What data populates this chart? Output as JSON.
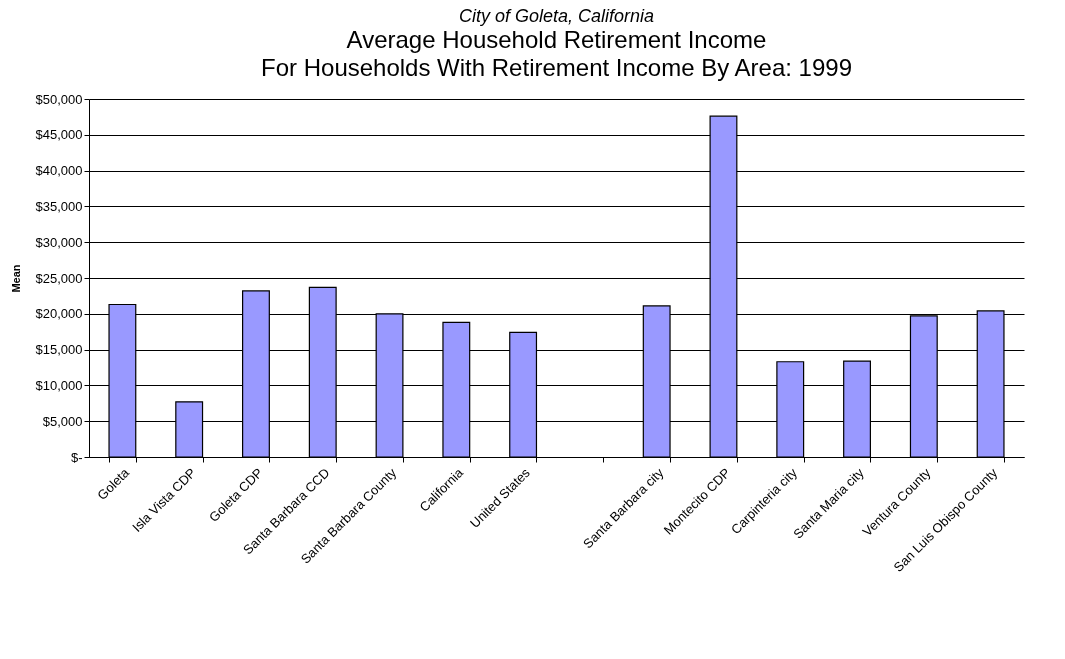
{
  "chart_data": {
    "type": "bar",
    "title": "City of Goleta, California",
    "subtitle": "Average Household Retirement Income\nFor Households With Retirement Income By Area: 1999",
    "ylabel": "Mean",
    "categories": [
      "Goleta",
      "Isla Vista CDP",
      "Goleta CDP",
      "Santa Barbara CCD",
      "Santa Barbara County",
      "California",
      "United States",
      null,
      "Santa Barbara city",
      "Montecito CDP",
      "Carpinteria city",
      "Santa Maria city",
      "Ventura County",
      "San Luis Obispo County"
    ],
    "values": [
      21300,
      7700,
      23200,
      23700,
      20000,
      18800,
      17400,
      null,
      21100,
      47600,
      13300,
      13400,
      19700,
      20400
    ],
    "color": "#9999ff",
    "ylim": [
      0,
      50000
    ],
    "yticks": [
      {
        "value": 0,
        "label": "$-"
      },
      {
        "value": 5000,
        "label": "$5,000"
      },
      {
        "value": 10000,
        "label": "$10,000"
      },
      {
        "value": 15000,
        "label": "$15,000"
      },
      {
        "value": 20000,
        "label": "$20,000"
      },
      {
        "value": 25000,
        "label": "$25,000"
      },
      {
        "value": 30000,
        "label": "$30,000"
      },
      {
        "value": 35000,
        "label": "$35,000"
      },
      {
        "value": 40000,
        "label": "$40,000"
      },
      {
        "value": 45000,
        "label": "$45,000"
      },
      {
        "value": 50000,
        "label": "$50,000"
      }
    ],
    "grid": "y"
  }
}
